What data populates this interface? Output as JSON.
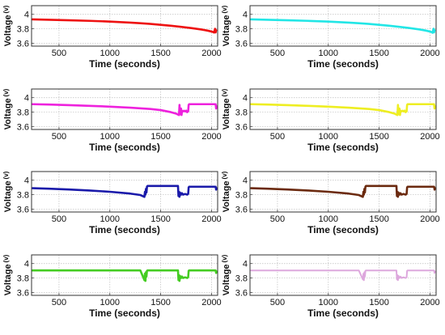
{
  "chart_data": [
    {
      "type": "line",
      "xlabel": "Time (seconds)",
      "ylabel": "Voltage",
      "ylabel_unit": "(v)",
      "xlim": [
        230,
        2060
      ],
      "ylim": [
        3.56,
        4.12
      ],
      "xticks": [
        500,
        1000,
        1500,
        2000
      ],
      "xtick_labels": [
        "500",
        "1000",
        "1500",
        "2000"
      ],
      "yticks": [
        3.6,
        3.8,
        4.0
      ],
      "ytick_labels": [
        "3.6",
        "3.8",
        "4"
      ],
      "grid": true,
      "series": [
        {
          "color": "#ee1111",
          "line_width": 2.6,
          "x": [
            240,
            400,
            600,
            800,
            1000,
            1100,
            1200,
            1300,
            1400,
            1500,
            1600,
            1700,
            1800,
            1900,
            1960,
            1990,
            2010,
            2025,
            2035,
            2040,
            2045
          ],
          "y": [
            3.93,
            3.925,
            3.918,
            3.91,
            3.9,
            3.893,
            3.886,
            3.877,
            3.867,
            3.855,
            3.842,
            3.827,
            3.81,
            3.79,
            3.775,
            3.765,
            3.758,
            3.748,
            3.8,
            3.75,
            3.78
          ]
        }
      ]
    },
    {
      "type": "line",
      "xlabel": "Time (seconds)",
      "ylabel": "Voltage",
      "ylabel_unit": "(v)",
      "xlim": [
        230,
        2060
      ],
      "ylim": [
        3.56,
        4.12
      ],
      "xticks": [
        500,
        1000,
        1500,
        2000
      ],
      "xtick_labels": [
        "500",
        "1000",
        "1500",
        "2000"
      ],
      "yticks": [
        3.6,
        3.8,
        4.0
      ],
      "ytick_labels": [
        "3.6",
        "3.8",
        "4"
      ],
      "grid": true,
      "series": [
        {
          "color": "#22e6e6",
          "line_width": 2.6,
          "x": [
            240,
            400,
            600,
            800,
            1000,
            1100,
            1200,
            1300,
            1400,
            1500,
            1600,
            1700,
            1800,
            1900,
            1960,
            1990,
            2010,
            2025,
            2035,
            2040,
            2045
          ],
          "y": [
            3.93,
            3.925,
            3.918,
            3.91,
            3.9,
            3.893,
            3.886,
            3.877,
            3.867,
            3.855,
            3.842,
            3.827,
            3.81,
            3.79,
            3.775,
            3.765,
            3.758,
            3.745,
            3.8,
            3.75,
            3.78
          ]
        }
      ]
    },
    {
      "type": "line",
      "ylabel": "Voltage",
      "ylabel_unit": "(v)",
      "xlabel": "Time (seconds)",
      "xlim": [
        230,
        2060
      ],
      "ylim": [
        3.56,
        4.12
      ],
      "xticks": [
        500,
        1000,
        1500,
        2000
      ],
      "xtick_labels": [
        "500",
        "1000",
        "1500",
        "2000"
      ],
      "yticks": [
        3.6,
        3.8,
        4.0
      ],
      "ytick_labels": [
        "3.6",
        "3.8",
        "4"
      ],
      "grid": true,
      "series": [
        {
          "color": "#ee22dd",
          "line_width": 2.6,
          "x": [
            240,
            400,
            600,
            800,
            1000,
            1200,
            1400,
            1500,
            1600,
            1650,
            1680,
            1685,
            1690,
            1700,
            1705,
            1710,
            1720,
            1730,
            1740,
            1750,
            1760,
            1770,
            1775,
            1780,
            1800,
            1900,
            1950,
            2000,
            2040,
            2045,
            2050
          ],
          "y": [
            3.91,
            3.905,
            3.897,
            3.887,
            3.876,
            3.862,
            3.843,
            3.828,
            3.8,
            3.78,
            3.76,
            3.9,
            3.77,
            3.85,
            3.76,
            3.82,
            3.81,
            3.82,
            3.81,
            3.82,
            3.8,
            3.81,
            3.9,
            3.91,
            3.91,
            3.91,
            3.91,
            3.91,
            3.91,
            3.85,
            3.88
          ]
        }
      ]
    },
    {
      "type": "line",
      "ylabel": "Voltage",
      "ylabel_unit": "(v)",
      "xlabel": "Time (seconds)",
      "xlim": [
        230,
        2060
      ],
      "ylim": [
        3.56,
        4.12
      ],
      "xticks": [
        500,
        1000,
        1500,
        2000
      ],
      "xtick_labels": [
        "500",
        "1000",
        "1500",
        "2000"
      ],
      "yticks": [
        3.6,
        3.8,
        4.0
      ],
      "ytick_labels": [
        "3.6",
        "3.8",
        "4"
      ],
      "grid": true,
      "series": [
        {
          "color": "#eeee22",
          "line_width": 2.6,
          "x": [
            240,
            400,
            600,
            800,
            1000,
            1200,
            1400,
            1500,
            1600,
            1650,
            1680,
            1685,
            1690,
            1700,
            1705,
            1710,
            1720,
            1730,
            1740,
            1750,
            1760,
            1770,
            1775,
            1780,
            1800,
            1900,
            1950,
            2000,
            2040,
            2045,
            2050
          ],
          "y": [
            3.91,
            3.905,
            3.897,
            3.887,
            3.876,
            3.862,
            3.843,
            3.828,
            3.8,
            3.78,
            3.76,
            3.9,
            3.77,
            3.85,
            3.76,
            3.82,
            3.81,
            3.82,
            3.81,
            3.82,
            3.8,
            3.81,
            3.9,
            3.91,
            3.91,
            3.91,
            3.91,
            3.91,
            3.91,
            3.85,
            3.88
          ]
        }
      ]
    },
    {
      "type": "line",
      "ylabel": "Voltage",
      "ylabel_unit": "(v)",
      "xlabel": "Time (seconds)",
      "xlim": [
        230,
        2060
      ],
      "ylim": [
        3.56,
        4.12
      ],
      "xticks": [
        500,
        1000,
        1500,
        2000
      ],
      "xtick_labels": [
        "500",
        "1000",
        "1500",
        "2000"
      ],
      "yticks": [
        3.6,
        3.8,
        4.0
      ],
      "ytick_labels": [
        "3.6",
        "3.8",
        "4"
      ],
      "grid": true,
      "series": [
        {
          "color": "#1a1aaa",
          "line_width": 2.6,
          "x": [
            240,
            400,
            600,
            800,
            1000,
            1200,
            1300,
            1340,
            1345,
            1350,
            1355,
            1360,
            1365,
            1370,
            1400,
            1500,
            1600,
            1660,
            1670,
            1675,
            1680,
            1685,
            1690,
            1700,
            1710,
            1720,
            1740,
            1760,
            1770,
            1775,
            1780,
            1800,
            1900,
            2000,
            2040,
            2045,
            2050
          ],
          "y": [
            3.89,
            3.883,
            3.872,
            3.858,
            3.84,
            3.815,
            3.795,
            3.77,
            3.84,
            3.8,
            3.88,
            3.83,
            3.91,
            3.92,
            3.92,
            3.92,
            3.92,
            3.92,
            3.92,
            3.78,
            3.84,
            3.77,
            3.83,
            3.8,
            3.82,
            3.8,
            3.81,
            3.8,
            3.81,
            3.9,
            3.91,
            3.91,
            3.91,
            3.91,
            3.91,
            3.87,
            3.89
          ]
        }
      ]
    },
    {
      "type": "line",
      "ylabel": "Voltage",
      "ylabel_unit": "(v)",
      "xlabel": "Time (seconds)",
      "xlim": [
        230,
        2060
      ],
      "ylim": [
        3.56,
        4.12
      ],
      "xticks": [
        500,
        1000,
        1500,
        2000
      ],
      "xtick_labels": [
        "500",
        "1000",
        "1500",
        "2000"
      ],
      "yticks": [
        3.6,
        3.8,
        4.0
      ],
      "ytick_labels": [
        "3.6",
        "3.8",
        "4"
      ],
      "grid": true,
      "series": [
        {
          "color": "#6b2a0f",
          "line_width": 2.6,
          "x": [
            240,
            400,
            600,
            800,
            1000,
            1200,
            1300,
            1340,
            1345,
            1350,
            1355,
            1360,
            1365,
            1370,
            1400,
            1500,
            1600,
            1660,
            1670,
            1675,
            1680,
            1685,
            1690,
            1700,
            1710,
            1720,
            1740,
            1760,
            1770,
            1775,
            1780,
            1800,
            1900,
            2000,
            2040,
            2045,
            2050
          ],
          "y": [
            3.89,
            3.883,
            3.872,
            3.858,
            3.84,
            3.815,
            3.795,
            3.77,
            3.84,
            3.8,
            3.88,
            3.83,
            3.91,
            3.92,
            3.92,
            3.92,
            3.92,
            3.92,
            3.92,
            3.78,
            3.84,
            3.77,
            3.83,
            3.8,
            3.82,
            3.8,
            3.81,
            3.8,
            3.81,
            3.9,
            3.91,
            3.91,
            3.91,
            3.91,
            3.91,
            3.87,
            3.89
          ]
        }
      ]
    },
    {
      "type": "line",
      "ylabel": "Voltage",
      "ylabel_unit": "(v)",
      "xlabel": "Time (seconds)",
      "xlim": [
        230,
        2060
      ],
      "ylim": [
        3.56,
        4.12
      ],
      "xticks": [
        500,
        1000,
        1500,
        2000
      ],
      "xtick_labels": [
        "500",
        "1000",
        "1500",
        "2000"
      ],
      "yticks": [
        3.6,
        3.8,
        4.0
      ],
      "ytick_labels": [
        "3.6",
        "3.8",
        "4"
      ],
      "grid": true,
      "series": [
        {
          "color": "#44cc22",
          "line_width": 2.6,
          "x": [
            240,
            400,
            600,
            800,
            1000,
            1200,
            1300,
            1340,
            1345,
            1350,
            1355,
            1360,
            1365,
            1370,
            1400,
            1500,
            1600,
            1660,
            1670,
            1675,
            1680,
            1685,
            1690,
            1700,
            1710,
            1720,
            1740,
            1760,
            1770,
            1775,
            1780,
            1800,
            1900,
            2000,
            2040,
            2045,
            2050
          ],
          "y": [
            3.905,
            3.905,
            3.905,
            3.905,
            3.905,
            3.905,
            3.905,
            3.77,
            3.86,
            3.76,
            3.88,
            3.82,
            3.9,
            3.905,
            3.905,
            3.905,
            3.905,
            3.905,
            3.905,
            3.77,
            3.84,
            3.76,
            3.83,
            3.8,
            3.82,
            3.8,
            3.81,
            3.8,
            3.81,
            3.9,
            3.905,
            3.905,
            3.905,
            3.905,
            3.905,
            3.87,
            3.89
          ]
        }
      ]
    },
    {
      "type": "line",
      "ylabel": "Voltage",
      "ylabel_unit": "(v)",
      "xlabel": "Time (seconds)",
      "xlim": [
        230,
        2060
      ],
      "ylim": [
        3.56,
        4.12
      ],
      "xticks": [
        500,
        1000,
        1500,
        2000
      ],
      "xtick_labels": [
        "500",
        "1000",
        "1500",
        "2000"
      ],
      "yticks": [
        3.6,
        3.8,
        4.0
      ],
      "ytick_labels": [
        "3.6",
        "3.8",
        "4"
      ],
      "grid": true,
      "series": [
        {
          "color": "#dda8dd",
          "line_width": 2.0,
          "x": [
            240,
            400,
            600,
            800,
            1000,
            1200,
            1300,
            1340,
            1345,
            1350,
            1355,
            1360,
            1365,
            1370,
            1400,
            1500,
            1600,
            1660,
            1670,
            1675,
            1680,
            1685,
            1690,
            1700,
            1710,
            1720,
            1740,
            1760,
            1770,
            1775,
            1780,
            1800,
            1900,
            2000,
            2040,
            2045,
            2050
          ],
          "y": [
            3.905,
            3.905,
            3.905,
            3.905,
            3.905,
            3.905,
            3.905,
            3.78,
            3.86,
            3.77,
            3.88,
            3.82,
            3.9,
            3.905,
            3.905,
            3.905,
            3.905,
            3.905,
            3.905,
            3.78,
            3.84,
            3.77,
            3.83,
            3.8,
            3.82,
            3.8,
            3.81,
            3.8,
            3.81,
            3.9,
            3.905,
            3.905,
            3.905,
            3.905,
            3.905,
            3.87,
            3.89
          ]
        }
      ]
    }
  ]
}
